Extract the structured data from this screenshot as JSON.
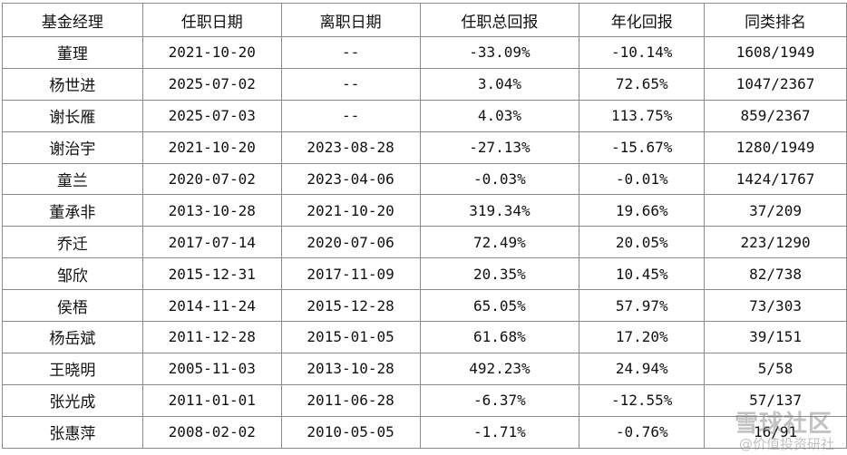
{
  "table": {
    "headers": [
      "基金经理",
      "任职日期",
      "离职日期",
      "任职总回报",
      "年化回报",
      "同类排名"
    ],
    "rows": [
      [
        "董理",
        "2021-10-20",
        "--",
        "-33.09%",
        "-10.14%",
        "1608/1949"
      ],
      [
        "杨世进",
        "2025-07-02",
        "--",
        "3.04%",
        "72.65%",
        "1047/2367"
      ],
      [
        "谢长雁",
        "2025-07-03",
        "--",
        "4.03%",
        "113.75%",
        "859/2367"
      ],
      [
        "谢治宇",
        "2021-10-20",
        "2023-08-28",
        "-27.13%",
        "-15.67%",
        "1280/1949"
      ],
      [
        "童兰",
        "2020-07-02",
        "2023-04-06",
        "-0.03%",
        "-0.01%",
        "1424/1767"
      ],
      [
        "董承非",
        "2013-10-28",
        "2021-10-20",
        "319.34%",
        "19.66%",
        "37/209"
      ],
      [
        "乔迁",
        "2017-07-14",
        "2020-07-06",
        "72.49%",
        "20.05%",
        "223/1290"
      ],
      [
        "邹欣",
        "2015-12-31",
        "2017-11-09",
        "20.35%",
        "10.45%",
        "82/738"
      ],
      [
        "侯梧",
        "2014-11-24",
        "2015-12-28",
        "65.05%",
        "57.97%",
        "73/303"
      ],
      [
        "杨岳斌",
        "2011-12-28",
        "2015-01-05",
        "61.68%",
        "17.20%",
        "39/151"
      ],
      [
        "王晓明",
        "2005-11-03",
        "2013-10-28",
        "492.23%",
        "24.94%",
        "5/58"
      ],
      [
        "张光成",
        "2011-01-01",
        "2011-06-28",
        "-6.37%",
        "-12.55%",
        "57/137"
      ],
      [
        "张惠萍",
        "2008-02-02",
        "2010-05-05",
        "-1.71%",
        "-0.76%",
        "16/91"
      ]
    ]
  },
  "watermark": {
    "main": "雪球社区",
    "sub": "@价值投资研社"
  }
}
